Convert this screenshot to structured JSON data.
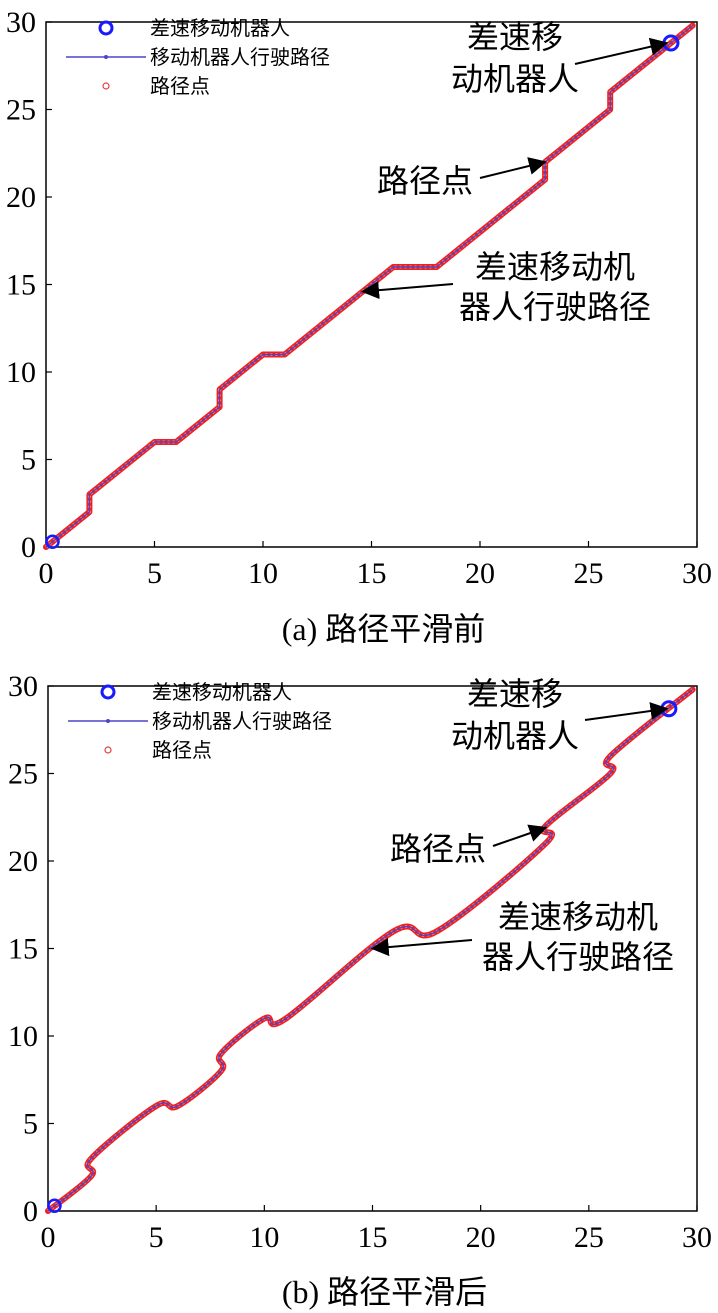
{
  "chart_data": [
    {
      "type": "line",
      "caption": "(a) 路径平滑前",
      "xlim": [
        0,
        30
      ],
      "ylim": [
        0,
        30
      ],
      "xticks": [
        "0",
        "5",
        "10",
        "15",
        "20",
        "25",
        "30"
      ],
      "yticks": [
        "0",
        "5",
        "10",
        "15",
        "20",
        "25",
        "30"
      ],
      "grid": false,
      "legend": {
        "position": "top-left",
        "entries": [
          "差速移动机器人",
          "移动机器人行驶路径",
          "路径点"
        ]
      },
      "annotations": [
        {
          "lines": [
            "差速移",
            "动机器人"
          ],
          "target": [
            28.6,
            28.8
          ]
        },
        {
          "lines": [
            "路径点"
          ],
          "target": [
            23,
            22
          ]
        },
        {
          "lines": [
            "差速移动机",
            "器人行驶路径"
          ],
          "target": [
            14.6,
            14.6
          ]
        }
      ],
      "robot_position": {
        "start": [
          0.3,
          0.3
        ],
        "end": [
          28.8,
          28.8
        ]
      },
      "series": [
        {
          "name": "移动机器人行驶路径",
          "x": [
            0,
            2,
            2,
            5,
            6,
            8,
            8,
            10,
            11,
            16,
            18,
            23,
            23,
            26,
            26,
            29.8
          ],
          "y": [
            0,
            2,
            3,
            6,
            6,
            8,
            9,
            11,
            11,
            16,
            16,
            21,
            22,
            25,
            26,
            29.8
          ]
        }
      ]
    },
    {
      "type": "line",
      "caption": "(b) 路径平滑后",
      "xlim": [
        0,
        30
      ],
      "ylim": [
        0,
        30
      ],
      "xticks": [
        "0",
        "5",
        "10",
        "15",
        "20",
        "25",
        "30"
      ],
      "yticks": [
        "0",
        "5",
        "10",
        "15",
        "20",
        "25",
        "30"
      ],
      "grid": false,
      "legend": {
        "position": "top-left",
        "entries": [
          "差速移动机器人",
          "移动机器人行驶路径",
          "路径点"
        ]
      },
      "annotations": [
        {
          "lines": [
            "差速移",
            "动机器人"
          ],
          "target": [
            28.6,
            28.7
          ]
        },
        {
          "lines": [
            "路径点"
          ],
          "target": [
            23,
            21.9
          ]
        },
        {
          "lines": [
            "差速移动机",
            "器人行驶路径"
          ],
          "target": [
            15,
            15
          ]
        }
      ],
      "robot_position": {
        "start": [
          0.3,
          0.3
        ],
        "end": [
          28.7,
          28.7
        ]
      },
      "series": [
        {
          "name": "移动机器人行驶路径",
          "smooth": true,
          "x": [
            0,
            2,
            2,
            5,
            6,
            8,
            8,
            10,
            11,
            16,
            18,
            23,
            23,
            26,
            26,
            29.8
          ],
          "y": [
            0,
            2,
            3,
            6,
            6,
            8,
            9,
            11,
            11,
            16,
            16,
            21,
            22,
            25,
            26,
            29.8
          ]
        }
      ]
    }
  ]
}
